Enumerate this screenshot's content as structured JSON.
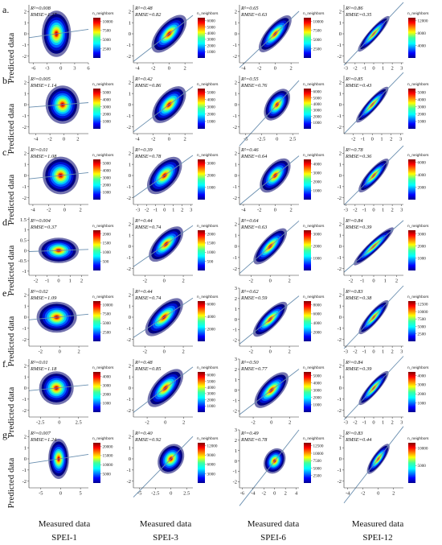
{
  "figure": {
    "row_labels": [
      "a.",
      "b.",
      "c.",
      "d.",
      "e.",
      "f.",
      "g."
    ],
    "y_axis_label": "Predicted data",
    "x_axis_label": "Measured data",
    "column_names": [
      "SPEI-1",
      "SPEI-3",
      "SPEI-6",
      "SPEI-12"
    ],
    "colorbar_title": "n_neighbors"
  },
  "chart_data": [
    {
      "type": "scatter",
      "row": "a.",
      "column": "SPEI-1",
      "r2": "R²=0.008",
      "rmse": "RMSE=1.27",
      "xticks": [
        -6,
        -3,
        0,
        3,
        6
      ],
      "yticks": [
        -2,
        -1,
        0,
        1,
        2
      ],
      "xlim": [
        -7,
        6
      ],
      "ylim": [
        -2.6,
        2.6
      ],
      "colorbar": [
        2500,
        5000,
        7500,
        10000
      ],
      "cmax": 11000,
      "spread_x": 1.7,
      "spread_y": 1.1,
      "corr": 0.09,
      "center": [
        -1,
        0
      ]
    },
    {
      "type": "scatter",
      "row": "a.",
      "column": "SPEI-3",
      "r2": "R²=0.48",
      "rmse": "RMSE=0.82",
      "xticks": [
        -4,
        -2,
        0,
        2
      ],
      "yticks": [
        -2,
        -1,
        0,
        1,
        2
      ],
      "xlim": [
        -4.5,
        3
      ],
      "ylim": [
        -2.6,
        2.6
      ],
      "colorbar": [
        1000,
        2000,
        3000,
        4000,
        5000,
        6000
      ],
      "cmax": 6500,
      "spread_x": 1.25,
      "spread_y": 1.0,
      "corr": 0.69,
      "center": [
        0,
        0
      ]
    },
    {
      "type": "scatter",
      "row": "a.",
      "column": "SPEI-6",
      "r2": "R²=0.65",
      "rmse": "RMSE=0.63",
      "xticks": [
        -4,
        -2,
        0,
        2
      ],
      "yticks": [
        -2,
        -1,
        0,
        1,
        2
      ],
      "xlim": [
        -4.5,
        3
      ],
      "ylim": [
        -2.6,
        2.6
      ],
      "colorbar": [
        2500,
        5000,
        7500,
        10000
      ],
      "cmax": 11000,
      "spread_x": 1.2,
      "spread_y": 1.0,
      "corr": 0.81,
      "center": [
        0,
        0
      ]
    },
    {
      "type": "scatter",
      "row": "a.",
      "column": "SPEI-12",
      "r2": "R²=0.86",
      "rmse": "RMSE=0.35",
      "xticks": [
        -3,
        -2,
        -1,
        0,
        1,
        2,
        3
      ],
      "yticks": [
        -2,
        -1,
        0,
        1,
        2
      ],
      "xlim": [
        -3.2,
        3.2
      ],
      "ylim": [
        -2.6,
        2.6
      ],
      "colorbar": [
        4000,
        8000,
        12000
      ],
      "cmax": 13000,
      "spread_x": 1.0,
      "spread_y": 0.95,
      "corr": 0.93,
      "center": [
        0,
        0
      ]
    },
    {
      "type": "scatter",
      "row": "b.",
      "column": "SPEI-1",
      "r2": "R²=0.005",
      "rmse": "RMSE=1.14",
      "xticks": [
        -4,
        -2,
        0,
        2
      ],
      "yticks": [
        -2,
        -1,
        0,
        1,
        2
      ],
      "xlim": [
        -5,
        3.5
      ],
      "ylim": [
        -2.6,
        2.6
      ],
      "colorbar": [
        1000,
        2000,
        3000,
        4000,
        5000
      ],
      "cmax": 5500,
      "spread_x": 1.3,
      "spread_y": 0.9,
      "corr": 0.07,
      "center": [
        -0.2,
        0
      ]
    },
    {
      "type": "scatter",
      "row": "b.",
      "column": "SPEI-3",
      "r2": "R²=0.42",
      "rmse": "RMSE=0.86",
      "xticks": [
        -4,
        -2,
        0,
        2
      ],
      "yticks": [
        -2,
        -1,
        0,
        1,
        2
      ],
      "xlim": [
        -4.5,
        3
      ],
      "ylim": [
        -2.6,
        2.6
      ],
      "colorbar": [
        1000,
        2000,
        3000,
        4000,
        5000
      ],
      "cmax": 5500,
      "spread_x": 1.2,
      "spread_y": 1.0,
      "corr": 0.65,
      "center": [
        0,
        0
      ]
    },
    {
      "type": "scatter",
      "row": "b.",
      "column": "SPEI-6",
      "r2": "R²=0.55",
      "rmse": "RMSE=0.76",
      "xticks": [
        -5.0,
        -2.5,
        0.0,
        2.5
      ],
      "yticks": [
        -2,
        -1,
        0,
        1,
        2
      ],
      "xlim": [
        -6,
        3.5
      ],
      "ylim": [
        -2.6,
        2.6
      ],
      "colorbar": [
        1000,
        2000,
        3000,
        4000,
        5000,
        6000
      ],
      "cmax": 6500,
      "spread_x": 1.2,
      "spread_y": 1.0,
      "corr": 0.74,
      "center": [
        0,
        0
      ]
    },
    {
      "type": "scatter",
      "row": "b.",
      "column": "SPEI-12",
      "r2": "R²=0.85",
      "rmse": "RMSE=0.43",
      "xticks": [
        -2,
        -1,
        0,
        1,
        2,
        3
      ],
      "yticks": [
        -2,
        -1,
        0,
        1,
        2
      ],
      "xlim": [
        -3,
        3.3
      ],
      "ylim": [
        -2.6,
        2.6
      ],
      "colorbar": [
        1000,
        2000,
        3000,
        4000,
        5000
      ],
      "cmax": 5500,
      "spread_x": 1.0,
      "spread_y": 0.95,
      "corr": 0.92,
      "center": [
        0,
        0
      ]
    },
    {
      "type": "scatter",
      "row": "c.",
      "column": "SPEI-1",
      "r2": "R²=0.01",
      "rmse": "RMSE=1.08",
      "xticks": [
        -4,
        -2,
        0,
        2
      ],
      "yticks": [
        -2,
        -1,
        0,
        1,
        2
      ],
      "xlim": [
        -4.5,
        3
      ],
      "ylim": [
        -2.6,
        2.6
      ],
      "colorbar": [
        1000,
        2000,
        3000,
        4000,
        5000
      ],
      "cmax": 5500,
      "spread_x": 1.2,
      "spread_y": 0.9,
      "corr": 0.1,
      "center": [
        -0.5,
        0
      ]
    },
    {
      "type": "scatter",
      "row": "c.",
      "column": "SPEI-3",
      "r2": "R²=0.39",
      "rmse": "RMSE=0.78",
      "xticks": [
        -3,
        -2,
        -1,
        0,
        1,
        2,
        3
      ],
      "yticks": [
        -2,
        -1,
        0,
        1,
        2
      ],
      "xlim": [
        -3.5,
        3.2
      ],
      "ylim": [
        -2.6,
        2.6
      ],
      "colorbar": [
        1000,
        2000,
        3000
      ],
      "cmax": 3300,
      "spread_x": 1.1,
      "spread_y": 1.0,
      "corr": 0.62,
      "center": [
        0,
        0
      ]
    },
    {
      "type": "scatter",
      "row": "c.",
      "column": "SPEI-6",
      "r2": "R²=0.46",
      "rmse": "RMSE=0.64",
      "xticks": [
        -4,
        -2,
        0,
        2
      ],
      "yticks": [
        -2,
        -1,
        0,
        1,
        2
      ],
      "xlim": [
        -4.5,
        3
      ],
      "ylim": [
        -2.6,
        2.6
      ],
      "colorbar": [
        1000,
        2000,
        3000,
        4000
      ],
      "cmax": 4500,
      "spread_x": 1.1,
      "spread_y": 0.95,
      "corr": 0.68,
      "center": [
        0,
        0
      ]
    },
    {
      "type": "scatter",
      "row": "c.",
      "column": "SPEI-12",
      "r2": "R²=0.78",
      "rmse": "RMSE=0.36",
      "xticks": [
        -3,
        -2,
        -1,
        0,
        1,
        2,
        3
      ],
      "yticks": [
        -2,
        -1,
        0,
        1,
        2
      ],
      "xlim": [
        -3.2,
        3.2
      ],
      "ylim": [
        -2.6,
        2.6
      ],
      "colorbar": [
        2000,
        4000,
        6000
      ],
      "cmax": 6500,
      "spread_x": 0.95,
      "spread_y": 0.9,
      "corr": 0.88,
      "center": [
        0,
        0
      ]
    },
    {
      "type": "scatter",
      "row": "d.",
      "column": "SPEI-1",
      "r2": "R²=0.004",
      "rmse": "RMSE=0.37",
      "xticks": [
        -2,
        -1,
        0,
        1,
        2
      ],
      "yticks": [
        -1.0,
        -0.5,
        0.0,
        0.5,
        1.0,
        1.5
      ],
      "xlim": [
        -2.6,
        2.6
      ],
      "ylim": [
        -1.2,
        1.6
      ],
      "colorbar": [
        500,
        1000,
        1500,
        2000
      ],
      "cmax": 2200,
      "spread_x": 0.95,
      "spread_y": 0.32,
      "corr": 0.06,
      "center": [
        0,
        0
      ]
    },
    {
      "type": "scatter",
      "row": "d.",
      "column": "SPEI-3",
      "r2": "R²=0.44",
      "rmse": "RMSE=0.74",
      "xticks": [
        -2,
        0,
        2
      ],
      "yticks": [
        -2,
        -1,
        0,
        1,
        2
      ],
      "xlim": [
        -3.2,
        3
      ],
      "ylim": [
        -2.6,
        2.6
      ],
      "colorbar": [
        500,
        1000,
        1500,
        2000
      ],
      "cmax": 2200,
      "spread_x": 1.0,
      "spread_y": 0.9,
      "corr": 0.66,
      "center": [
        0.2,
        0.2
      ]
    },
    {
      "type": "scatter",
      "row": "d.",
      "column": "SPEI-6",
      "r2": "R²=0.64",
      "rmse": "RMSE=0.63",
      "xticks": [
        -2,
        0,
        2
      ],
      "yticks": [
        -2,
        -1,
        0,
        1,
        2
      ],
      "xlim": [
        -3.2,
        3
      ],
      "ylim": [
        -2.6,
        2.6
      ],
      "colorbar": [
        1000,
        2000,
        3000
      ],
      "cmax": 3300,
      "spread_x": 1.0,
      "spread_y": 0.95,
      "corr": 0.8,
      "center": [
        0,
        0
      ]
    },
    {
      "type": "scatter",
      "row": "d.",
      "column": "SPEI-12",
      "r2": "R²=0.84",
      "rmse": "RMSE=0.39",
      "xticks": [
        -2,
        -1,
        0,
        1,
        2
      ],
      "yticks": [
        -2,
        -1,
        0,
        1,
        2
      ],
      "xlim": [
        -2.6,
        2.6
      ],
      "ylim": [
        -2.6,
        2.6
      ],
      "colorbar": [
        1000,
        2000,
        3000
      ],
      "cmax": 3300,
      "spread_x": 0.95,
      "spread_y": 0.92,
      "corr": 0.92,
      "center": [
        0,
        0
      ]
    },
    {
      "type": "scatter",
      "row": "e.",
      "column": "SPEI-1",
      "r2": "R²=0.02",
      "rmse": "RMSE=1.09",
      "xticks": [
        -2,
        0,
        2
      ],
      "yticks": [
        -2,
        -1,
        0,
        1,
        2
      ],
      "xlim": [
        -3.2,
        3
      ],
      "ylim": [
        -2.6,
        2.6
      ],
      "colorbar": [
        2500,
        5000,
        7500,
        10000
      ],
      "cmax": 11000,
      "spread_x": 1.1,
      "spread_y": 0.75,
      "corr": 0.12,
      "center": [
        -0.3,
        0
      ]
    },
    {
      "type": "scatter",
      "row": "e.",
      "column": "SPEI-3",
      "r2": "R²=0.44",
      "rmse": "RMSE=0.74",
      "xticks": [
        -2,
        0,
        2
      ],
      "yticks": [
        -2,
        -1,
        0,
        1,
        2
      ],
      "xlim": [
        -3.2,
        3
      ],
      "ylim": [
        -2.6,
        2.6
      ],
      "colorbar": [
        2000,
        4000,
        6000
      ],
      "cmax": 6500,
      "spread_x": 1.1,
      "spread_y": 0.95,
      "corr": 0.66,
      "center": [
        0,
        0
      ]
    },
    {
      "type": "scatter",
      "row": "e.",
      "column": "SPEI-6",
      "r2": "R²=0.62",
      "rmse": "RMSE=0.59",
      "xticks": [
        -2,
        0,
        2
      ],
      "yticks": [
        -2,
        -1,
        0,
        1,
        2,
        3
      ],
      "xlim": [
        -3.2,
        3
      ],
      "ylim": [
        -2.6,
        3
      ],
      "colorbar": [
        2000,
        4000,
        6000,
        8000
      ],
      "cmax": 8800,
      "spread_x": 1.0,
      "spread_y": 0.95,
      "corr": 0.79,
      "center": [
        0,
        0
      ]
    },
    {
      "type": "scatter",
      "row": "e.",
      "column": "SPEI-12",
      "r2": "R²=0.83",
      "rmse": "RMSE=0.38",
      "xticks": [
        -3,
        -2,
        -1,
        0,
        1,
        2,
        3
      ],
      "yticks": [
        -2,
        -1,
        0,
        1,
        2
      ],
      "xlim": [
        -3.2,
        3.2
      ],
      "ylim": [
        -2.6,
        2.6
      ],
      "colorbar": [
        2500,
        5000,
        7500,
        10000,
        12500
      ],
      "cmax": 13500,
      "spread_x": 0.95,
      "spread_y": 0.92,
      "corr": 0.91,
      "center": [
        0,
        0
      ]
    },
    {
      "type": "scatter",
      "row": "f.",
      "column": "SPEI-1",
      "r2": "R²=0.01",
      "rmse": "RMSE=1.18",
      "xticks": [
        -2.5,
        0.0,
        2.5
      ],
      "yticks": [
        -2,
        -1,
        0,
        1,
        2
      ],
      "xlim": [
        -4,
        3.8
      ],
      "ylim": [
        -2.6,
        2.6
      ],
      "colorbar": [
        1000,
        2000,
        3000,
        4000
      ],
      "cmax": 4500,
      "spread_x": 1.2,
      "spread_y": 0.8,
      "corr": 0.1,
      "center": [
        -0.4,
        0
      ]
    },
    {
      "type": "scatter",
      "row": "f.",
      "column": "SPEI-3",
      "r2": "R²=0.48",
      "rmse": "RMSE=0.85",
      "xticks": [
        -2,
        0,
        2
      ],
      "yticks": [
        -2,
        -1,
        0,
        1,
        2
      ],
      "xlim": [
        -3.5,
        3
      ],
      "ylim": [
        -2.6,
        2.6
      ],
      "colorbar": [
        1000,
        2000,
        3000,
        4000,
        5000,
        6000
      ],
      "cmax": 6500,
      "spread_x": 1.1,
      "spread_y": 1.0,
      "corr": 0.69,
      "center": [
        0,
        0
      ]
    },
    {
      "type": "scatter",
      "row": "f.",
      "column": "SPEI-6",
      "r2": "R²=0.50",
      "rmse": "RMSE=0.77",
      "xticks": [
        -2,
        0,
        2
      ],
      "yticks": [
        -2,
        -1,
        0,
        1,
        2,
        3
      ],
      "xlim": [
        -3.5,
        3
      ],
      "ylim": [
        -2.6,
        3
      ],
      "colorbar": [
        1000,
        2000,
        3000,
        4000,
        5000
      ],
      "cmax": 5500,
      "spread_x": 1.05,
      "spread_y": 1.0,
      "corr": 0.71,
      "center": [
        0,
        0
      ]
    },
    {
      "type": "scatter",
      "row": "f.",
      "column": "SPEI-12",
      "r2": "R²=0.84",
      "rmse": "RMSE=0.39",
      "xticks": [
        -3,
        -2,
        -1,
        0,
        1,
        2,
        3
      ],
      "yticks": [
        -2,
        -1,
        0,
        1,
        2
      ],
      "xlim": [
        -3.2,
        3.2
      ],
      "ylim": [
        -2.6,
        2.6
      ],
      "colorbar": [
        1000,
        2000,
        3000,
        4000
      ],
      "cmax": 4400,
      "spread_x": 0.95,
      "spread_y": 0.92,
      "corr": 0.92,
      "center": [
        0,
        0
      ]
    },
    {
      "type": "scatter",
      "row": "g.",
      "column": "SPEI-1",
      "r2": "R²=0.007",
      "rmse": "RMSE=1.24",
      "xticks": [
        -5,
        0,
        5
      ],
      "yticks": [
        -2,
        -1,
        0,
        1,
        2
      ],
      "xlim": [
        -8,
        7
      ],
      "ylim": [
        -2.6,
        2.6
      ],
      "colorbar": [
        5000,
        10000,
        15000,
        20000
      ],
      "cmax": 22000,
      "spread_x": 1.4,
      "spread_y": 0.95,
      "corr": 0.08,
      "center": [
        -0.5,
        0
      ]
    },
    {
      "type": "scatter",
      "row": "g.",
      "column": "SPEI-3",
      "r2": "R²=0.40",
      "rmse": "RMSE=0.92",
      "xticks": [
        -5.0,
        -2.5,
        0.0,
        2.5
      ],
      "yticks": [
        -2,
        -1,
        0,
        1,
        2
      ],
      "xlim": [
        -6,
        3.5
      ],
      "ylim": [
        -2.6,
        2.6
      ],
      "colorbar": [
        3000,
        6000,
        9000,
        12000
      ],
      "cmax": 13000,
      "spread_x": 1.1,
      "spread_y": 1.0,
      "corr": 0.63,
      "center": [
        0,
        0
      ]
    },
    {
      "type": "scatter",
      "row": "g.",
      "column": "SPEI-6",
      "r2": "R²=0.49",
      "rmse": "RMSE=0.78",
      "xticks": [
        -6,
        -4,
        -2,
        0,
        2,
        4
      ],
      "yticks": [
        -2,
        -1,
        0,
        1,
        2,
        3
      ],
      "xlim": [
        -6.5,
        4.5
      ],
      "ylim": [
        -2.6,
        3
      ],
      "colorbar": [
        2500,
        5000,
        7500,
        10000,
        12500
      ],
      "cmax": 13500,
      "spread_x": 1.05,
      "spread_y": 1.0,
      "corr": 0.7,
      "center": [
        0,
        0
      ]
    },
    {
      "type": "scatter",
      "row": "g.",
      "column": "SPEI-12",
      "r2": "R²=0.83",
      "rmse": "RMSE=0.44",
      "xticks": [
        -4,
        -2,
        0,
        2
      ],
      "yticks": [
        -2,
        -1,
        0,
        1,
        2
      ],
      "xlim": [
        -4.5,
        3.3
      ],
      "ylim": [
        -2.6,
        2.6
      ],
      "colorbar": [
        5000,
        10000
      ],
      "cmax": 11500,
      "spread_x": 0.95,
      "spread_y": 0.92,
      "corr": 0.91,
      "center": [
        0,
        0
      ]
    }
  ]
}
